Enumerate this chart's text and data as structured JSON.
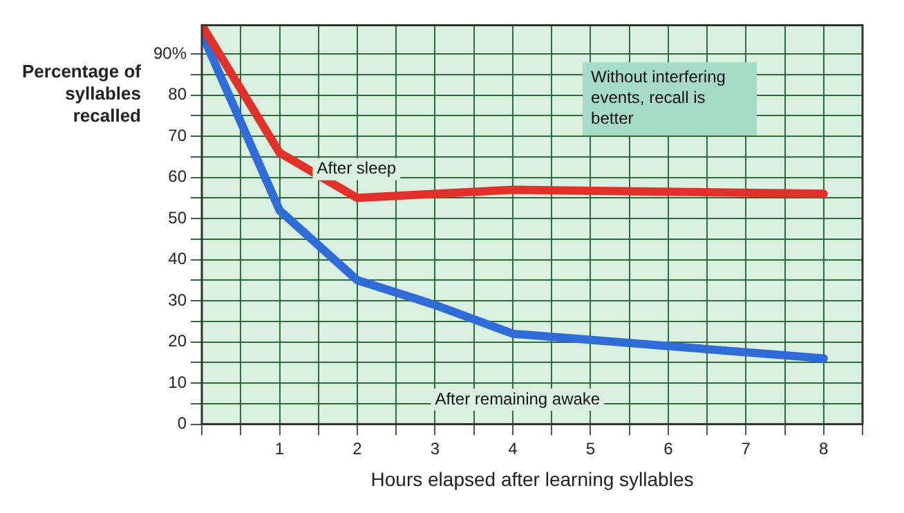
{
  "chart_data": {
    "type": "line",
    "xlabel": "Hours elapsed after learning syllables",
    "ylabel": "Percentage of syllables recalled",
    "x": [
      0,
      1,
      2,
      3,
      4,
      6,
      8
    ],
    "series": [
      {
        "name": "After sleep",
        "color": "#e2312b",
        "x": [
          0,
          1,
          2,
          4,
          8
        ],
        "values": [
          97,
          66,
          55,
          57,
          56
        ]
      },
      {
        "name": "After remaining awake",
        "color": "#2f6cd8",
        "values": [
          95,
          52,
          35,
          29,
          22,
          19,
          16
        ]
      }
    ],
    "xlim": [
      0,
      8.5
    ],
    "xticks": [
      {
        "value": 0,
        "label": null
      },
      {
        "value": 0.5,
        "label": null
      },
      1,
      {
        "value": 1.5,
        "label": null
      },
      2,
      {
        "value": 2.5,
        "label": null
      },
      3,
      {
        "value": 3.5,
        "label": null
      },
      4,
      {
        "value": 4.5,
        "label": null
      },
      5,
      {
        "value": 5.5,
        "label": null
      },
      6,
      {
        "value": 6.5,
        "label": null
      },
      7,
      {
        "value": 7.5,
        "label": null
      },
      8,
      {
        "value": 8.5,
        "label": null
      }
    ],
    "ylim": [
      0,
      97
    ],
    "yticks": [
      0,
      {
        "value": 5,
        "label": null
      },
      10,
      {
        "value": 15,
        "label": null
      },
      20,
      {
        "value": 25,
        "label": null
      },
      30,
      {
        "value": 35,
        "label": null
      },
      40,
      {
        "value": 45,
        "label": null
      },
      50,
      {
        "value": 55,
        "label": null
      },
      60,
      {
        "value": 65,
        "label": null
      },
      70,
      {
        "value": 75,
        "label": null
      },
      80,
      {
        "value": 85,
        "label": null
      },
      {
        "value": 90,
        "label": "90%"
      }
    ],
    "annotations": [
      "Without interfering events, recall is better"
    ],
    "grid": true,
    "legend": false,
    "marker": "none",
    "line_style": "solid"
  }
}
